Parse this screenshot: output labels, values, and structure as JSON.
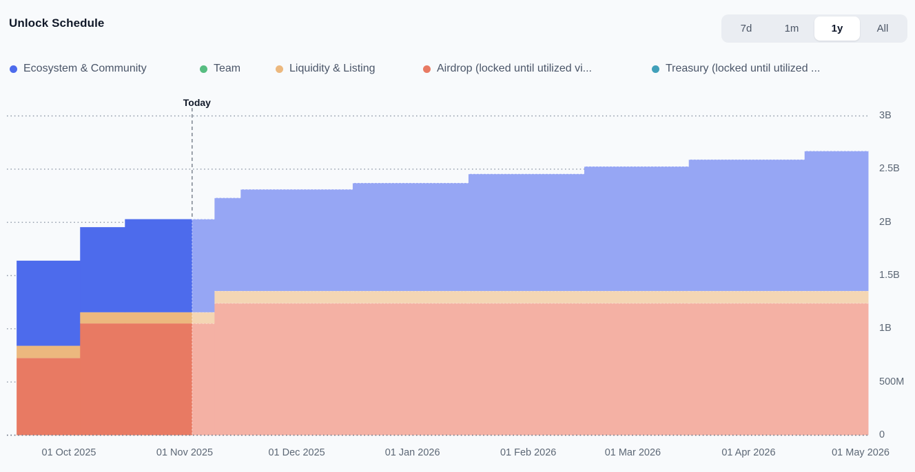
{
  "header": {
    "title": "Unlock Schedule"
  },
  "range_selector": {
    "options": [
      "7d",
      "1m",
      "1y",
      "All"
    ],
    "active": "1y"
  },
  "legend": {
    "items": [
      {
        "label": "Ecosystem & Community",
        "color": "#4d6bec"
      },
      {
        "label": "Team",
        "color": "#57bd81"
      },
      {
        "label": "Liquidity & Listing",
        "color": "#ecb87e"
      },
      {
        "label": "Airdrop (locked until utilized vi...",
        "color": "#e87a63"
      },
      {
        "label": "Treasury (locked until utilized ...",
        "color": "#41a0ba"
      }
    ]
  },
  "chart_data": {
    "type": "area",
    "variant": "stepped-stacked",
    "title": "Unlock Schedule",
    "unit": "tokens (millions)",
    "today": "2025-11-03",
    "today_label": "Today",
    "grid": "dotted-horizontal",
    "legend_position": "top",
    "y_axis": {
      "side": "right",
      "max_millions": 3000,
      "ticks": [
        {
          "label": "3B",
          "value": 3000
        },
        {
          "label": "2.5B",
          "value": 2500
        },
        {
          "label": "2B",
          "value": 2000
        },
        {
          "label": "1.5B",
          "value": 1500
        },
        {
          "label": "1B",
          "value": 1000
        },
        {
          "label": "500M",
          "value": 500
        },
        {
          "label": "0",
          "value": 0
        }
      ]
    },
    "x_axis": {
      "start": "2025-09-17",
      "end": "2026-05-03",
      "ticks": [
        {
          "label": "01 Oct 2025",
          "date": "2025-10-01"
        },
        {
          "label": "01 Nov 2025",
          "date": "2025-11-01"
        },
        {
          "label": "01 Dec 2025",
          "date": "2025-12-01"
        },
        {
          "label": "01 Jan 2026",
          "date": "2026-01-01"
        },
        {
          "label": "01 Feb 2026",
          "date": "2026-02-01"
        },
        {
          "label": "01 Mar 2026",
          "date": "2026-03-01"
        },
        {
          "label": "01 Apr 2026",
          "date": "2026-04-01"
        },
        {
          "label": "01 May 2026",
          "date": "2026-05-01"
        }
      ]
    },
    "series": [
      {
        "key": "airdrop",
        "name": "Airdrop (locked until utilized vi..."
      },
      {
        "key": "liquidity",
        "name": "Liquidity & Listing"
      },
      {
        "key": "ecosystem",
        "name": "Ecosystem & Community"
      },
      {
        "key": "team",
        "name": "Team"
      },
      {
        "key": "treasury",
        "name": "Treasury (locked until utilized ..."
      }
    ],
    "stack_order": [
      "airdrop",
      "liquidity",
      "ecosystem",
      "team",
      "treasury"
    ],
    "series_colors": {
      "ecosystem": {
        "past": "#4d6bec",
        "future": "#96a6f4"
      },
      "team": {
        "past": "#57bd81",
        "future": "#b3e0c6"
      },
      "liquidity": {
        "past": "#ecb87e",
        "future": "#f4d6b4"
      },
      "airdrop": {
        "past": "#e87a63",
        "future": "#f4b1a4"
      },
      "treasury": {
        "past": "#41a0ba",
        "future": "#a6d4e0"
      }
    },
    "segments": [
      {
        "start": "2025-09-17",
        "end": "2025-10-04",
        "values": {
          "airdrop": 725,
          "liquidity": 115,
          "ecosystem": 800,
          "team": 0,
          "treasury": 0
        }
      },
      {
        "start": "2025-10-04",
        "end": "2025-10-16",
        "values": {
          "airdrop": 1050,
          "liquidity": 105,
          "ecosystem": 800,
          "team": 0,
          "treasury": 0
        }
      },
      {
        "start": "2025-10-16",
        "end": "2025-11-09",
        "values": {
          "airdrop": 1050,
          "liquidity": 105,
          "ecosystem": 875,
          "team": 0,
          "treasury": 0
        }
      },
      {
        "start": "2025-11-09",
        "end": "2025-11-16",
        "values": {
          "airdrop": 1240,
          "liquidity": 115,
          "ecosystem": 875,
          "team": 0,
          "treasury": 0
        }
      },
      {
        "start": "2025-11-16",
        "end": "2025-12-16",
        "values": {
          "airdrop": 1240,
          "liquidity": 115,
          "ecosystem": 955,
          "team": 0,
          "treasury": 0
        }
      },
      {
        "start": "2025-12-16",
        "end": "2026-01-16",
        "values": {
          "airdrop": 1240,
          "liquidity": 115,
          "ecosystem": 1015,
          "team": 0,
          "treasury": 0
        }
      },
      {
        "start": "2026-01-16",
        "end": "2026-02-16",
        "values": {
          "airdrop": 1240,
          "liquidity": 115,
          "ecosystem": 1100,
          "team": 0,
          "treasury": 0
        }
      },
      {
        "start": "2026-02-16",
        "end": "2026-03-16",
        "values": {
          "airdrop": 1240,
          "liquidity": 115,
          "ecosystem": 1170,
          "team": 0,
          "treasury": 0
        }
      },
      {
        "start": "2026-03-16",
        "end": "2026-04-16",
        "values": {
          "airdrop": 1240,
          "liquidity": 115,
          "ecosystem": 1235,
          "team": 0,
          "treasury": 0
        }
      },
      {
        "start": "2026-04-16",
        "end": "2026-05-03",
        "values": {
          "airdrop": 1240,
          "liquidity": 115,
          "ecosystem": 1315,
          "team": 0,
          "treasury": 0
        }
      }
    ]
  }
}
